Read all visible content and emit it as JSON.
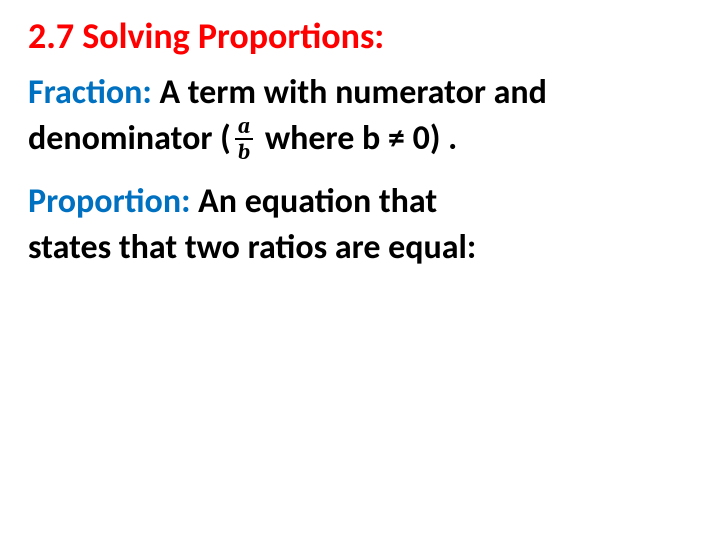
{
  "title": "2.7 Solving Proportions:",
  "definitions": [
    {
      "label": "Fraction:  ",
      "line1_before": "A term with numerator and",
      "line2_before": "denominator (",
      "fraction_num": "a",
      "fraction_den": "b",
      "line2_after": " where b ≠ 0) ."
    },
    {
      "label": "Proportion:  ",
      "line1": "An equation that",
      "line2": "states that two ratios are equal:"
    }
  ],
  "colors": {
    "title": "#ff0000",
    "term": "#0070c0",
    "body": "#000000",
    "background": "#ffffff"
  },
  "font_sizes": {
    "title": 36,
    "body": 34,
    "fraction": 22
  }
}
